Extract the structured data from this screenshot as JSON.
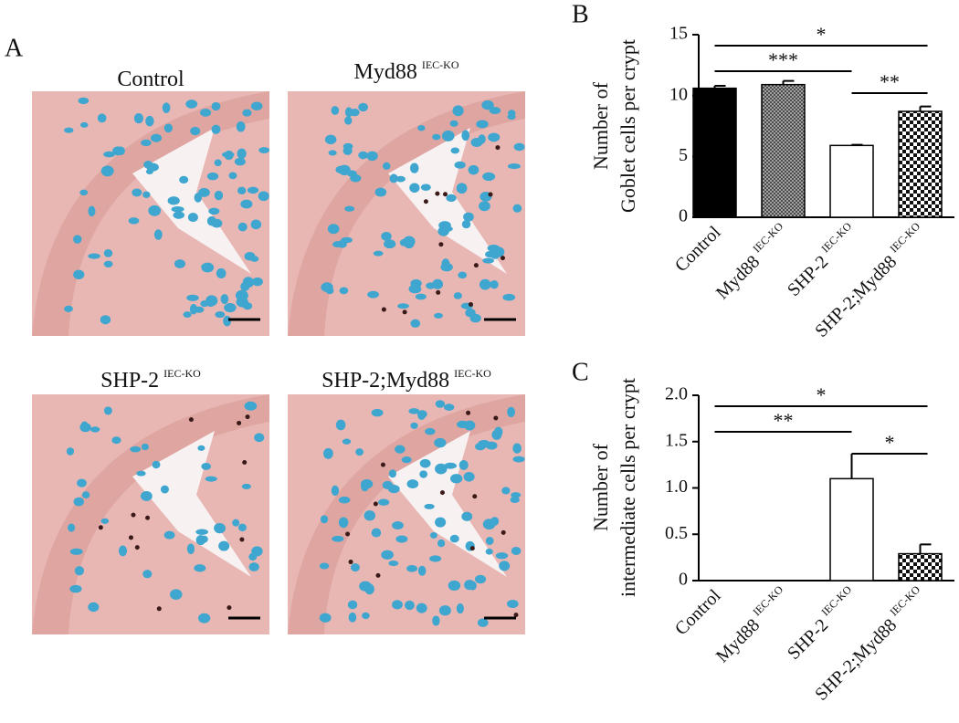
{
  "panel_labels": [
    "A",
    "B",
    "C"
  ],
  "micrographs": [
    {
      "label": "Control",
      "superscript": null
    },
    {
      "label": "Myd88",
      "superscript": "IEC-KO"
    },
    {
      "label": "SHP-2",
      "superscript": "IEC-KO"
    },
    {
      "label": "SHP-2;Myd88",
      "superscript": "IEC-KO"
    }
  ],
  "chart_data": [
    {
      "type": "bar",
      "y_label": [
        "Number of",
        "Goblet cells per crypt"
      ],
      "categories": [
        "Control",
        "Myd88",
        "SHP-2",
        "SHP-2;Myd88"
      ],
      "category_superscripts": [
        null,
        "IEC-KO",
        "IEC-KO",
        "IEC-KO"
      ],
      "values": [
        10.6,
        10.9,
        5.9,
        8.7
      ],
      "errors": [
        0.2,
        0.3,
        0.05,
        0.4
      ],
      "fills": [
        "solid",
        "crosshatch",
        "none",
        "checker"
      ],
      "ylim": [
        0,
        15
      ],
      "yticks": [
        0,
        5,
        10,
        15
      ],
      "significance": [
        {
          "from": 0,
          "to": 3,
          "label": "*"
        },
        {
          "from": 0,
          "to": 2,
          "label": "***"
        },
        {
          "from": 2,
          "to": 3,
          "label": "**"
        }
      ]
    },
    {
      "type": "bar",
      "y_label": [
        "Number of",
        "intermediate cells per crypt"
      ],
      "categories": [
        "Control",
        "Myd88",
        "SHP-2",
        "SHP-2;Myd88"
      ],
      "category_superscripts": [
        null,
        "IEC-KO",
        "IEC-KO",
        "IEC-KO"
      ],
      "values": [
        0,
        0,
        1.1,
        0.29
      ],
      "errors": [
        0,
        0,
        0.27,
        0.1
      ],
      "fills": [
        "solid",
        "crosshatch",
        "none",
        "checker"
      ],
      "ylim": [
        0,
        2
      ],
      "yticks": [
        0,
        0.5,
        {
          "value": 1,
          "label": "1.0"
        },
        1.5,
        {
          "value": 2,
          "label": "2.0"
        }
      ],
      "significance": [
        {
          "from": 0,
          "to": 3,
          "label": "*"
        },
        {
          "from": 0,
          "to": 2,
          "label": "**"
        },
        {
          "from": 2,
          "to": 3,
          "label": "*"
        }
      ]
    }
  ]
}
